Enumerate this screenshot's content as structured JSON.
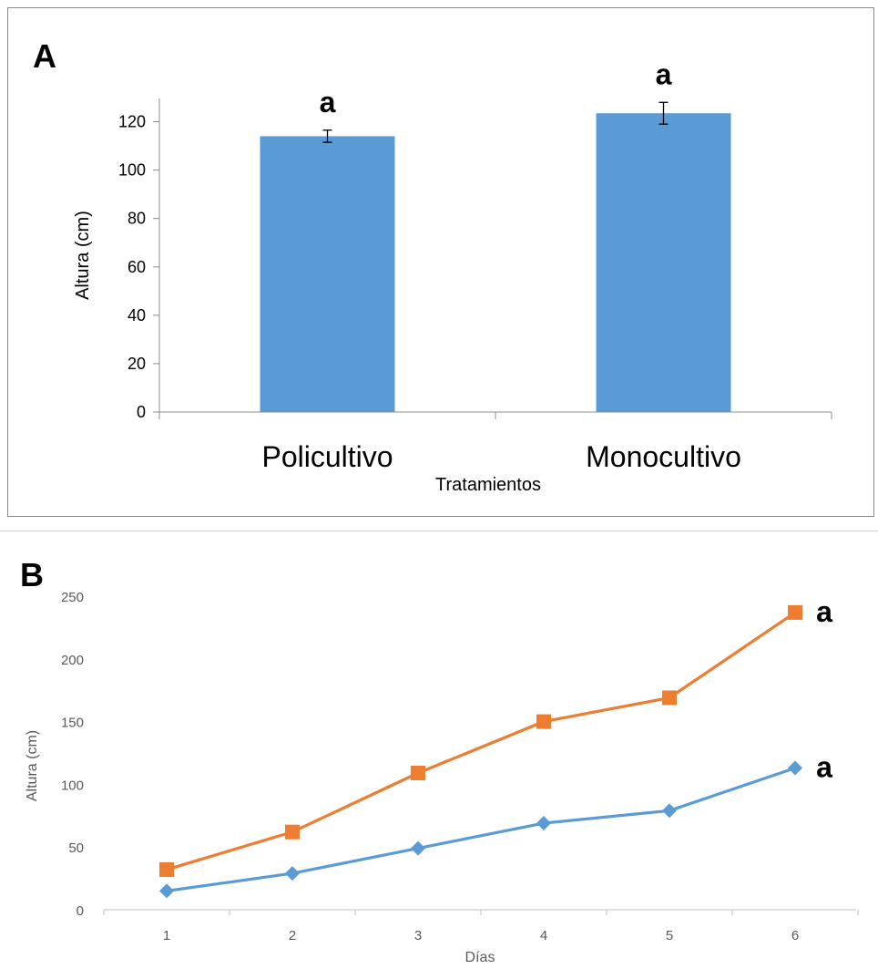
{
  "chart_data": [
    {
      "type": "bar",
      "panel_label": "A",
      "categories": [
        "Policultivo",
        "Monocultivo"
      ],
      "values": [
        114,
        123.5
      ],
      "errors": [
        2.5,
        4.5
      ],
      "significance": [
        "a",
        "a"
      ],
      "xlabel": "Tratamientos",
      "ylabel": "Altura (cm)",
      "ylim": [
        0,
        130
      ],
      "yticks": [
        0,
        20,
        40,
        60,
        80,
        100,
        120
      ],
      "grid": false,
      "colors": {
        "bar": "#5b9bd5"
      }
    },
    {
      "type": "line",
      "panel_label": "B",
      "x": [
        1,
        2,
        3,
        4,
        5,
        6
      ],
      "series": [
        {
          "values": [
            15,
            29,
            49,
            69,
            79,
            113
          ],
          "color": "#5b9bd5",
          "marker": "diamond",
          "significance": "a"
        },
        {
          "values": [
            32,
            62,
            109,
            150,
            169,
            237
          ],
          "color": "#ed7d31",
          "marker": "square",
          "significance": "a"
        }
      ],
      "xlabel": "Días",
      "ylabel": "Altura (cm)",
      "ylim": [
        0,
        250
      ],
      "yticks": [
        0,
        50,
        100,
        150,
        200,
        250
      ],
      "grid": false
    }
  ]
}
